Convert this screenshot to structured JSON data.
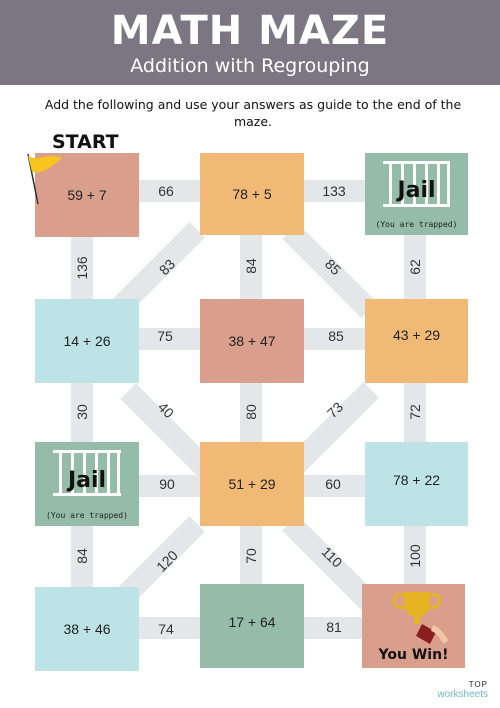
{
  "header": {
    "title": "MATH MAZE",
    "subtitle": "Addition with Regrouping"
  },
  "instructions": "Add the following and use your answers as guide to the end of the maze.",
  "start_label": "START",
  "cells": {
    "r1c1": "59 + 7",
    "r1c2": "78 + 5",
    "r1c3_title": "Jail",
    "r1c3_sub": "(You are trapped)",
    "r2c1": "14 + 26",
    "r2c2": "38 + 47",
    "r2c3": "43 + 29",
    "r3c1_title": "Jail",
    "r3c1_sub": "(You are trapped)",
    "r3c2": "51 + 29",
    "r3c3": "78 + 22",
    "r4c1": "38 + 46",
    "r4c2": "17 + 64",
    "r4c3_title": "You Win!"
  },
  "numbers": {
    "h_r1a": "66",
    "h_r1b": "133",
    "h_r2a": "75",
    "h_r2b": "85",
    "h_r3a": "90",
    "h_r3b": "60",
    "h_r4a": "74",
    "h_r4b": "81",
    "v_c1a": "136",
    "v_c2a": "84",
    "v_c3a": "62",
    "v_c1b": "30",
    "v_c2b": "80",
    "v_c3b": "72",
    "v_c1c": "84",
    "v_c2c": "70",
    "v_c3c": "100",
    "d_1": "83",
    "d_2": "85",
    "d_3": "40",
    "d_4": "73",
    "d_5": "120",
    "d_6": "110"
  },
  "brand": {
    "line1": "TOP",
    "line2": "worksheets"
  },
  "colors": {
    "header": "#7b7681",
    "pink": "#d99e8c",
    "orange": "#f0b976",
    "blue": "#bde3e6",
    "green": "#94bca9"
  }
}
